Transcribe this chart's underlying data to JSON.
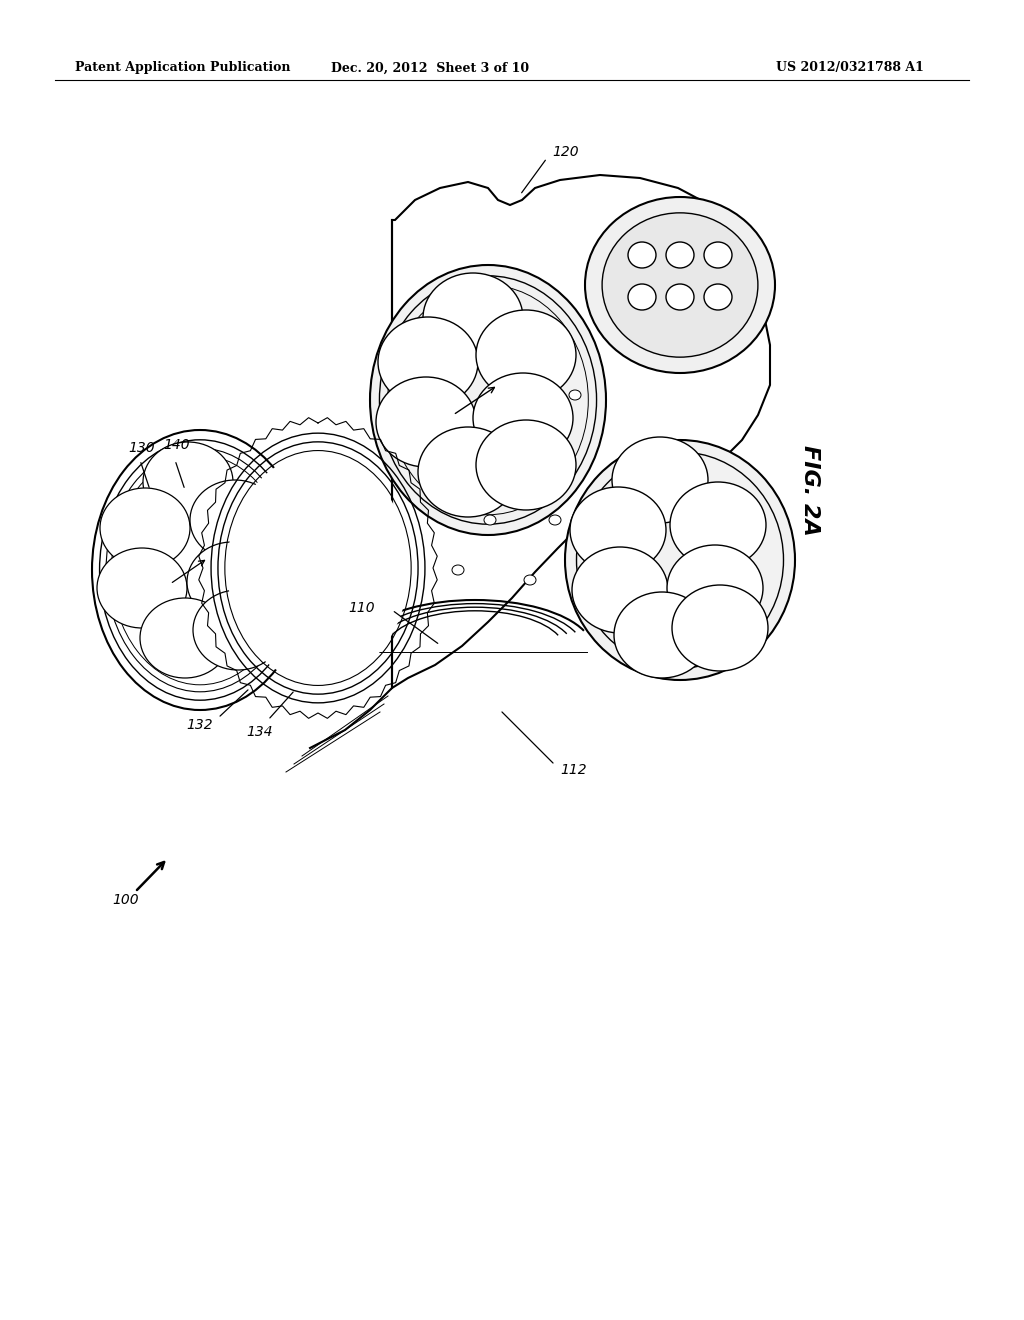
{
  "header_left": "Patent Application Publication",
  "header_mid": "Dec. 20, 2012  Sheet 3 of 10",
  "header_right": "US 2012/0321788 A1",
  "fig_label": "FIG. 2A",
  "bg_color": "#ffffff",
  "line_color": "#000000",
  "gray_light": "#e8e8e8",
  "gray_med": "#d0d0d0"
}
